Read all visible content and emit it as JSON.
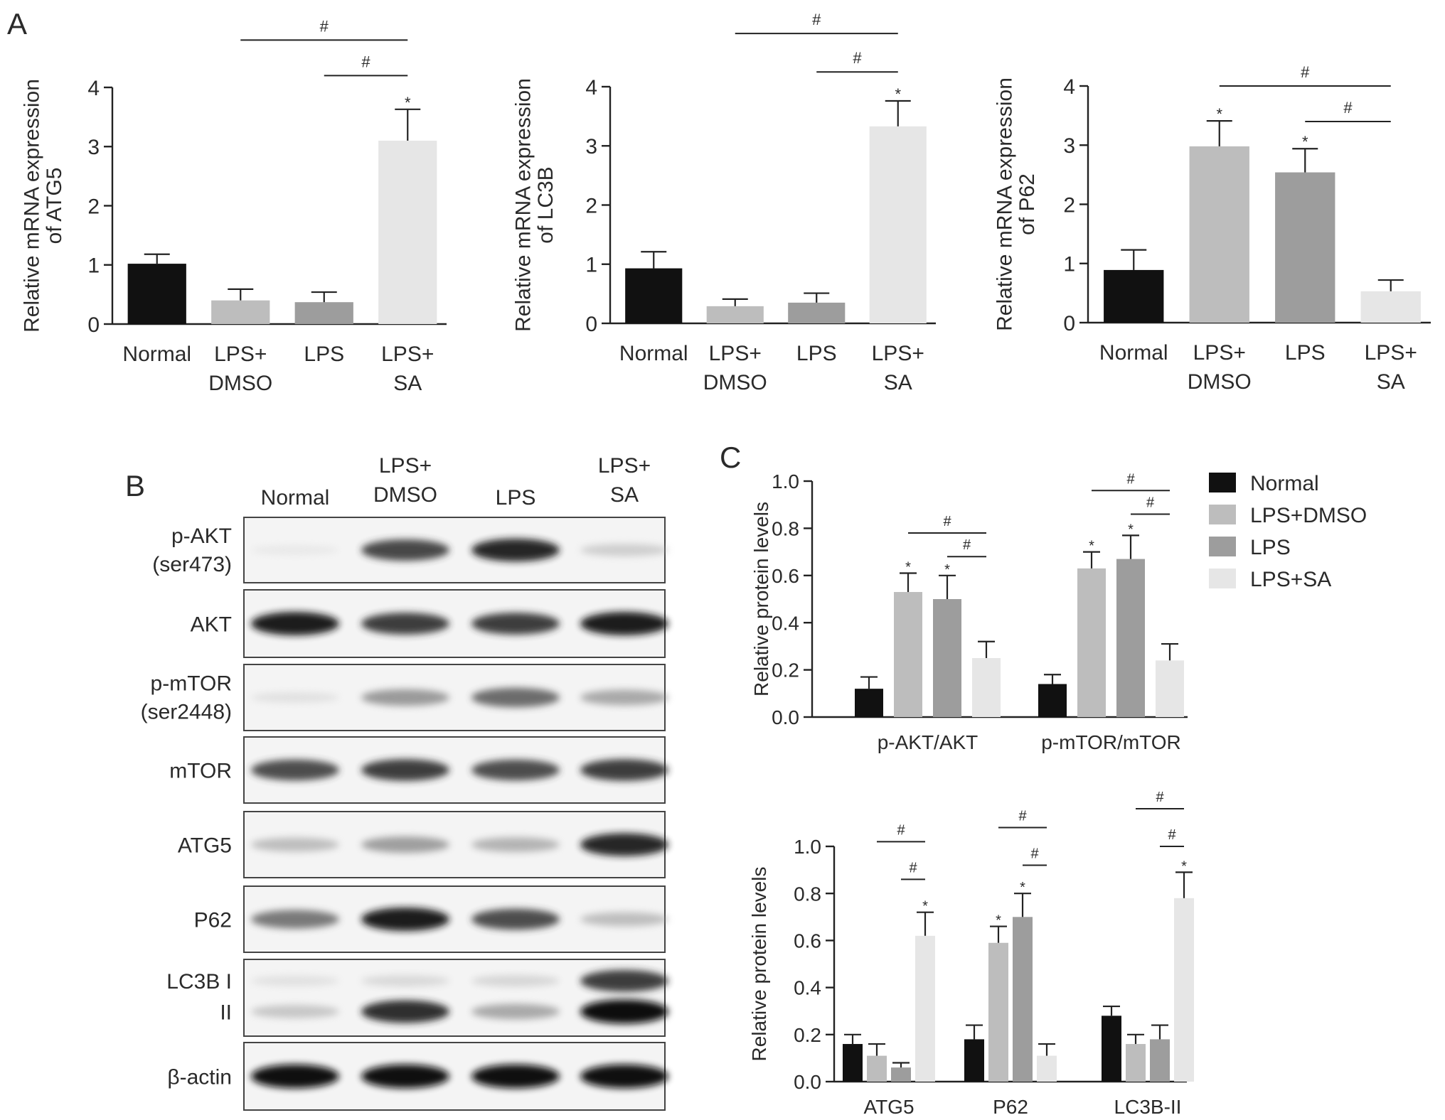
{
  "panels": {
    "a": "A",
    "b": "B",
    "c": "C"
  },
  "legend": [
    {
      "label": "Normal",
      "color": "#111111"
    },
    {
      "label": "LPS+DMSO",
      "color": "#bdbdbd"
    },
    {
      "label": "LPS",
      "color": "#9d9d9d"
    },
    {
      "label": "LPS+SA",
      "color": "#e6e6e6"
    }
  ],
  "chart_data": [
    {
      "type": "bar",
      "panel": "A",
      "ylabel": [
        "Relative mRNA expression",
        "of ATG5"
      ],
      "ylim": [
        0,
        4
      ],
      "yticks": [
        "0",
        "1",
        "2",
        "3",
        "4"
      ],
      "categories": [
        [
          "Normal"
        ],
        [
          "LPS+",
          "DMSO"
        ],
        [
          "LPS"
        ],
        [
          "LPS+",
          "SA"
        ]
      ],
      "values": [
        1.02,
        0.4,
        0.37,
        3.1
      ],
      "errors": [
        0.16,
        0.19,
        0.17,
        0.53
      ],
      "star": [
        false,
        false,
        false,
        true
      ],
      "colors": [
        "#111111",
        "#bdbdbd",
        "#9d9d9d",
        "#e6e6e6"
      ],
      "sig": [
        {
          "from": 1,
          "to": 3,
          "level": 4.8,
          "label": "#"
        },
        {
          "from": 2,
          "to": 3,
          "level": 4.2,
          "label": "#"
        }
      ]
    },
    {
      "type": "bar",
      "panel": "A",
      "ylabel": [
        "Relative mRNA expression",
        "of LC3B"
      ],
      "ylim": [
        0,
        4
      ],
      "yticks": [
        "0",
        "1",
        "2",
        "3",
        "4"
      ],
      "categories": [
        [
          "Normal"
        ],
        [
          "LPS+",
          "DMSO"
        ],
        [
          "LPS"
        ],
        [
          "LPS+",
          "SA"
        ]
      ],
      "values": [
        0.93,
        0.29,
        0.35,
        3.33
      ],
      "errors": [
        0.28,
        0.12,
        0.16,
        0.43
      ],
      "star": [
        false,
        false,
        false,
        true
      ],
      "colors": [
        "#111111",
        "#bdbdbd",
        "#9d9d9d",
        "#e6e6e6"
      ],
      "sig": [
        {
          "from": 1,
          "to": 3,
          "level": 4.9,
          "label": "#"
        },
        {
          "from": 2,
          "to": 3,
          "level": 4.25,
          "label": "#"
        }
      ]
    },
    {
      "type": "bar",
      "panel": "A",
      "ylabel": [
        "Relative mRNA expression",
        "of P62"
      ],
      "ylim": [
        0,
        4
      ],
      "yticks": [
        "0",
        "1",
        "2",
        "3",
        "4"
      ],
      "categories": [
        [
          "Normal"
        ],
        [
          "LPS+",
          "DMSO"
        ],
        [
          "LPS"
        ],
        [
          "LPS+",
          "SA"
        ]
      ],
      "values": [
        0.89,
        2.98,
        2.54,
        0.53
      ],
      "errors": [
        0.34,
        0.43,
        0.4,
        0.19
      ],
      "star": [
        false,
        true,
        true,
        false
      ],
      "colors": [
        "#111111",
        "#bdbdbd",
        "#9d9d9d",
        "#e6e6e6"
      ],
      "sig": [
        {
          "from": 1,
          "to": 3,
          "level": 4.0,
          "label": "#"
        },
        {
          "from": 2,
          "to": 3,
          "level": 3.4,
          "label": "#"
        }
      ]
    },
    {
      "type": "bar",
      "panel": "C",
      "ylabel": [
        "Relative protein levels"
      ],
      "ylim": [
        0,
        1.0
      ],
      "yticks": [
        "0.0",
        "0.2",
        "0.4",
        "0.6",
        "0.8",
        "1.0"
      ],
      "groups": [
        "p-AKT/AKT",
        "p-mTOR/mTOR"
      ],
      "series": [
        {
          "name": "Normal",
          "values": [
            0.12,
            0.14
          ],
          "errors": [
            0.05,
            0.04
          ]
        },
        {
          "name": "LPS+DMSO",
          "values": [
            0.53,
            0.63
          ],
          "errors": [
            0.08,
            0.07
          ]
        },
        {
          "name": "LPS",
          "values": [
            0.5,
            0.67
          ],
          "errors": [
            0.1,
            0.1
          ]
        },
        {
          "name": "LPS+SA",
          "values": [
            0.25,
            0.24
          ],
          "errors": [
            0.07,
            0.07
          ]
        }
      ],
      "stars": [
        [
          false,
          false
        ],
        [
          true,
          true
        ],
        [
          true,
          true
        ],
        [
          false,
          false
        ]
      ],
      "sig": [
        {
          "group": 0,
          "from": 1,
          "to": 3,
          "level": 0.78,
          "label": "#"
        },
        {
          "group": 0,
          "from": 2,
          "to": 3,
          "level": 0.68,
          "label": "#"
        },
        {
          "group": 1,
          "from": 1,
          "to": 3,
          "level": 0.96,
          "label": "#"
        },
        {
          "group": 1,
          "from": 2,
          "to": 3,
          "level": 0.86,
          "label": "#"
        }
      ]
    },
    {
      "type": "bar",
      "panel": "C",
      "ylabel": [
        "Relative protein levels"
      ],
      "ylim": [
        0,
        1.0
      ],
      "yticks": [
        "0.0",
        "0.2",
        "0.4",
        "0.6",
        "0.8",
        "1.0"
      ],
      "groups": [
        "ATG5",
        "P62",
        "LC3B-II"
      ],
      "series": [
        {
          "name": "Normal",
          "values": [
            0.16,
            0.18,
            0.28
          ],
          "errors": [
            0.04,
            0.06,
            0.04
          ]
        },
        {
          "name": "LPS+DMSO",
          "values": [
            0.11,
            0.59,
            0.16
          ],
          "errors": [
            0.05,
            0.07,
            0.04
          ]
        },
        {
          "name": "LPS",
          "values": [
            0.06,
            0.7,
            0.18
          ],
          "errors": [
            0.02,
            0.1,
            0.06
          ]
        },
        {
          "name": "LPS+SA",
          "values": [
            0.62,
            0.11,
            0.78
          ],
          "errors": [
            0.1,
            0.05,
            0.11
          ]
        }
      ],
      "stars": [
        [
          false,
          false,
          false
        ],
        [
          false,
          true,
          false
        ],
        [
          false,
          true,
          false
        ],
        [
          true,
          false,
          true
        ]
      ],
      "sig": [
        {
          "group": 0,
          "from": 1,
          "to": 3,
          "level": 1.02,
          "label": "#"
        },
        {
          "group": 0,
          "from": 2,
          "to": 3,
          "level": 0.86,
          "label": "#"
        },
        {
          "group": 1,
          "from": 1,
          "to": 3,
          "level": 1.08,
          "label": "#"
        },
        {
          "group": 1,
          "from": 2,
          "to": 3,
          "level": 0.92,
          "label": "#"
        },
        {
          "group": 2,
          "from": 1,
          "to": 3,
          "level": 1.16,
          "label": "#"
        },
        {
          "group": 2,
          "from": 2,
          "to": 3,
          "level": 1.0,
          "label": "#"
        }
      ]
    }
  ],
  "blot": {
    "columns": [
      [
        "Normal"
      ],
      [
        "LPS+",
        "DMSO"
      ],
      [
        "LPS"
      ],
      [
        "LPS+",
        "SA"
      ]
    ],
    "rows": [
      {
        "label": [
          "p-AKT",
          "(ser473)"
        ],
        "bands": [
          [
            0.05,
            0.82,
            0.92,
            0.25
          ]
        ]
      },
      {
        "label": [
          "AKT"
        ],
        "bands": [
          [
            0.95,
            0.85,
            0.85,
            0.95
          ]
        ]
      },
      {
        "label": [
          "p-mTOR",
          "(ser2448)"
        ],
        "bands": [
          [
            0.12,
            0.52,
            0.7,
            0.45
          ]
        ]
      },
      {
        "label": [
          "mTOR"
        ],
        "bands": [
          [
            0.8,
            0.85,
            0.8,
            0.85
          ]
        ]
      },
      {
        "label": [
          "ATG5"
        ],
        "bands": [
          [
            0.35,
            0.5,
            0.4,
            0.92
          ]
        ]
      },
      {
        "label": [
          "P62"
        ],
        "bands": [
          [
            0.65,
            0.95,
            0.8,
            0.35
          ]
        ]
      },
      {
        "label": [
          "LC3B I",
          "II"
        ],
        "bands": [
          [
            0.12,
            0.18,
            0.2,
            0.85
          ],
          [
            0.3,
            0.9,
            0.45,
            1.0
          ]
        ]
      },
      {
        "label": [
          "β-actin"
        ],
        "bands": [
          [
            0.98,
            0.98,
            0.98,
            0.98
          ]
        ]
      }
    ]
  }
}
